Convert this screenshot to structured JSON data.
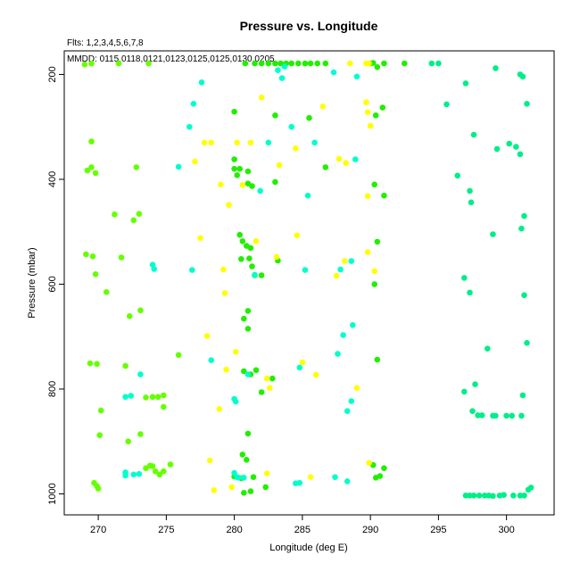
{
  "chart_data": {
    "type": "scatter",
    "title": "Pressure vs. Longitude",
    "flights_note": "Flts: 1,2,3,4,5,6,7,8",
    "mmdd_note": "MMDD: 0115,0118,0121,0123,0125,0125,0130,0205",
    "xlabel": "Longitude (deg E)",
    "ylabel": "Pressure (mbar)",
    "xlim": [
      267.5,
      303.5
    ],
    "ylim": [
      1040,
      155
    ],
    "y_inverted": true,
    "grid": false,
    "xticks": [
      270,
      275,
      280,
      285,
      290,
      295,
      300
    ],
    "yticks": [
      200,
      400,
      600,
      800,
      1000
    ],
    "series": [
      {
        "color": "#66ff00",
        "points": [
          [
            269.0,
            181
          ],
          [
            269.5,
            179
          ],
          [
            271.5,
            179
          ],
          [
            273.7,
            179
          ],
          [
            269.5,
            328
          ],
          [
            269.2,
            383
          ],
          [
            269.5,
            377
          ],
          [
            269.8,
            388
          ],
          [
            272.8,
            377
          ],
          [
            271.2,
            467
          ],
          [
            272.6,
            478
          ],
          [
            273.0,
            466
          ],
          [
            269.1,
            543
          ],
          [
            269.6,
            547
          ],
          [
            271.7,
            549
          ],
          [
            269.8,
            581
          ],
          [
            270.6,
            615
          ],
          [
            272.3,
            661
          ],
          [
            273.1,
            650
          ],
          [
            275.9,
            735
          ],
          [
            269.4,
            751
          ],
          [
            269.9,
            752
          ],
          [
            272.0,
            756
          ],
          [
            270.2,
            841
          ],
          [
            273.5,
            816
          ],
          [
            274.0,
            815
          ],
          [
            274.4,
            815
          ],
          [
            274.8,
            812
          ],
          [
            274.8,
            834
          ],
          [
            270.1,
            888
          ],
          [
            272.2,
            900
          ],
          [
            273.1,
            886
          ],
          [
            269.7,
            979
          ],
          [
            269.9,
            985
          ],
          [
            270.0,
            990
          ],
          [
            273.5,
            951
          ],
          [
            273.8,
            946
          ],
          [
            274.0,
            947
          ],
          [
            274.2,
            957
          ],
          [
            274.5,
            963
          ],
          [
            274.8,
            957
          ],
          [
            275.3,
            944
          ]
        ]
      },
      {
        "color": "#22ee00",
        "points": [
          [
            280.8,
            179
          ],
          [
            281.5,
            179
          ],
          [
            282.0,
            179
          ],
          [
            282.5,
            179
          ],
          [
            283.0,
            179
          ],
          [
            283.4,
            179
          ],
          [
            283.8,
            179
          ],
          [
            284.2,
            179
          ],
          [
            284.7,
            179
          ],
          [
            285.2,
            179
          ],
          [
            285.6,
            179
          ],
          [
            286.1,
            179
          ],
          [
            286.7,
            179
          ],
          [
            290.0,
            179
          ],
          [
            290.2,
            178
          ],
          [
            290.5,
            186
          ],
          [
            291.0,
            179
          ],
          [
            292.5,
            179
          ],
          [
            290.9,
            263
          ],
          [
            290.4,
            278
          ],
          [
            283.0,
            278
          ],
          [
            285.5,
            283
          ],
          [
            280.0,
            271
          ],
          [
            280.0,
            362
          ],
          [
            280.0,
            380
          ],
          [
            280.4,
            380
          ],
          [
            280.2,
            392
          ],
          [
            281.0,
            385
          ],
          [
            281.0,
            408
          ],
          [
            281.3,
            413
          ],
          [
            283.0,
            405
          ],
          [
            286.7,
            377
          ],
          [
            290.3,
            410
          ],
          [
            291.0,
            431
          ],
          [
            280.4,
            506
          ],
          [
            280.6,
            518
          ],
          [
            280.9,
            527
          ],
          [
            281.2,
            531
          ],
          [
            280.5,
            552
          ],
          [
            281.1,
            551
          ],
          [
            281.3,
            566
          ],
          [
            281.5,
            583
          ],
          [
            282.0,
            583
          ],
          [
            283.2,
            555
          ],
          [
            290.5,
            519
          ],
          [
            290.3,
            600
          ],
          [
            280.7,
            666
          ],
          [
            281.0,
            651
          ],
          [
            281.0,
            685
          ],
          [
            280.7,
            766
          ],
          [
            281.2,
            772
          ],
          [
            281.6,
            764
          ],
          [
            282.0,
            806
          ],
          [
            282.8,
            780
          ],
          [
            290.5,
            744
          ],
          [
            281.0,
            885
          ],
          [
            280.6,
            925
          ],
          [
            280.9,
            935
          ],
          [
            281.4,
            968
          ],
          [
            280.0,
            967
          ],
          [
            280.5,
            970
          ],
          [
            280.7,
            998
          ],
          [
            281.2,
            995
          ],
          [
            282.3,
            987
          ],
          [
            290.2,
            945
          ],
          [
            290.4,
            969
          ],
          [
            290.7,
            966
          ],
          [
            291.0,
            951
          ]
        ]
      },
      {
        "color": "#ffff00",
        "points": [
          [
            289.7,
            179
          ],
          [
            289.9,
            179
          ],
          [
            288.5,
            179
          ],
          [
            282.0,
            244
          ],
          [
            286.5,
            261
          ],
          [
            289.7,
            253
          ],
          [
            289.8,
            272
          ],
          [
            290.0,
            298
          ],
          [
            277.8,
            330
          ],
          [
            278.3,
            330
          ],
          [
            280.2,
            330
          ],
          [
            281.2,
            330
          ],
          [
            283.3,
            373
          ],
          [
            284.5,
            341
          ],
          [
            287.7,
            361
          ],
          [
            288.2,
            369
          ],
          [
            277.1,
            366
          ],
          [
            279.0,
            410
          ],
          [
            279.6,
            449
          ],
          [
            280.6,
            411
          ],
          [
            289.8,
            432
          ],
          [
            277.5,
            512
          ],
          [
            281.6,
            518
          ],
          [
            284.6,
            507
          ],
          [
            279.2,
            572
          ],
          [
            279.3,
            617
          ],
          [
            283.1,
            548
          ],
          [
            287.5,
            584
          ],
          [
            288.1,
            556
          ],
          [
            289.8,
            539
          ],
          [
            290.3,
            575
          ],
          [
            278.0,
            699
          ],
          [
            280.1,
            729
          ],
          [
            279.4,
            763
          ],
          [
            282.4,
            780
          ],
          [
            282.6,
            798
          ],
          [
            285.0,
            749
          ],
          [
            286.0,
            773
          ],
          [
            289.0,
            798
          ],
          [
            278.9,
            838
          ],
          [
            278.2,
            936
          ],
          [
            278.5,
            993
          ],
          [
            279.8,
            987
          ],
          [
            282.4,
            961
          ],
          [
            285.6,
            968
          ],
          [
            289.9,
            941
          ]
        ]
      },
      {
        "color": "#00ffcc",
        "points": [
          [
            283.2,
            192
          ],
          [
            283.5,
            207
          ],
          [
            283.7,
            185
          ],
          [
            287.3,
            196
          ],
          [
            289.0,
            204
          ],
          [
            277.6,
            215
          ],
          [
            277.0,
            256
          ],
          [
            276.7,
            300
          ],
          [
            284.2,
            300
          ],
          [
            282.5,
            330
          ],
          [
            285.9,
            330
          ],
          [
            275.9,
            376
          ],
          [
            288.9,
            362
          ],
          [
            281.9,
            422
          ],
          [
            285.4,
            431
          ],
          [
            274.0,
            563
          ],
          [
            274.1,
            571
          ],
          [
            276.9,
            573
          ],
          [
            285.2,
            573
          ],
          [
            287.8,
            572
          ],
          [
            288.6,
            556
          ],
          [
            281.5,
            582
          ],
          [
            273.1,
            772
          ],
          [
            278.3,
            745
          ],
          [
            284.8,
            759
          ],
          [
            287.6,
            733
          ],
          [
            288.0,
            697
          ],
          [
            288.7,
            678
          ],
          [
            288.3,
            842
          ],
          [
            288.6,
            823
          ],
          [
            272.0,
            815
          ],
          [
            272.4,
            813
          ],
          [
            280.0,
            819
          ],
          [
            280.1,
            824
          ],
          [
            281.0,
            772
          ],
          [
            272.0,
            959
          ],
          [
            272.0,
            965
          ],
          [
            272.6,
            963
          ],
          [
            280.0,
            960
          ],
          [
            280.3,
            969
          ],
          [
            280.7,
            969
          ],
          [
            284.5,
            980
          ],
          [
            284.8,
            979
          ],
          [
            287.4,
            968
          ],
          [
            288.3,
            976
          ],
          [
            280.2,
            968
          ],
          [
            273.0,
            962
          ]
        ]
      },
      {
        "color": "#00ee88",
        "points": [
          [
            294.5,
            179
          ],
          [
            295.0,
            179
          ],
          [
            297.0,
            217
          ],
          [
            299.2,
            188
          ],
          [
            301.0,
            200
          ],
          [
            301.2,
            204
          ],
          [
            295.6,
            257
          ],
          [
            301.5,
            256
          ],
          [
            297.6,
            315
          ],
          [
            299.3,
            342
          ],
          [
            300.2,
            332
          ],
          [
            300.7,
            338
          ],
          [
            301.0,
            352
          ],
          [
            296.4,
            393
          ],
          [
            297.3,
            422
          ],
          [
            297.4,
            444
          ],
          [
            301.3,
            470
          ],
          [
            301.1,
            494
          ],
          [
            299.0,
            505
          ],
          [
            296.9,
            588
          ],
          [
            297.3,
            616
          ],
          [
            301.3,
            621
          ],
          [
            298.6,
            723
          ],
          [
            301.5,
            712
          ],
          [
            296.9,
            805
          ],
          [
            297.7,
            791
          ],
          [
            297.5,
            842
          ],
          [
            297.9,
            850
          ],
          [
            298.2,
            850
          ],
          [
            299.0,
            851
          ],
          [
            299.2,
            851
          ],
          [
            300.0,
            851
          ],
          [
            300.4,
            851
          ],
          [
            301.1,
            851
          ],
          [
            301.2,
            812
          ],
          [
            297.0,
            1003
          ],
          [
            297.3,
            1003
          ],
          [
            297.6,
            1003
          ],
          [
            298.0,
            1003
          ],
          [
            298.4,
            1003
          ],
          [
            298.7,
            1003
          ],
          [
            299.0,
            1004
          ],
          [
            299.5,
            1003
          ],
          [
            299.8,
            1002
          ],
          [
            300.5,
            1003
          ],
          [
            301.0,
            1003
          ],
          [
            301.3,
            1003
          ],
          [
            301.6,
            992
          ],
          [
            301.8,
            988
          ]
        ]
      }
    ]
  }
}
